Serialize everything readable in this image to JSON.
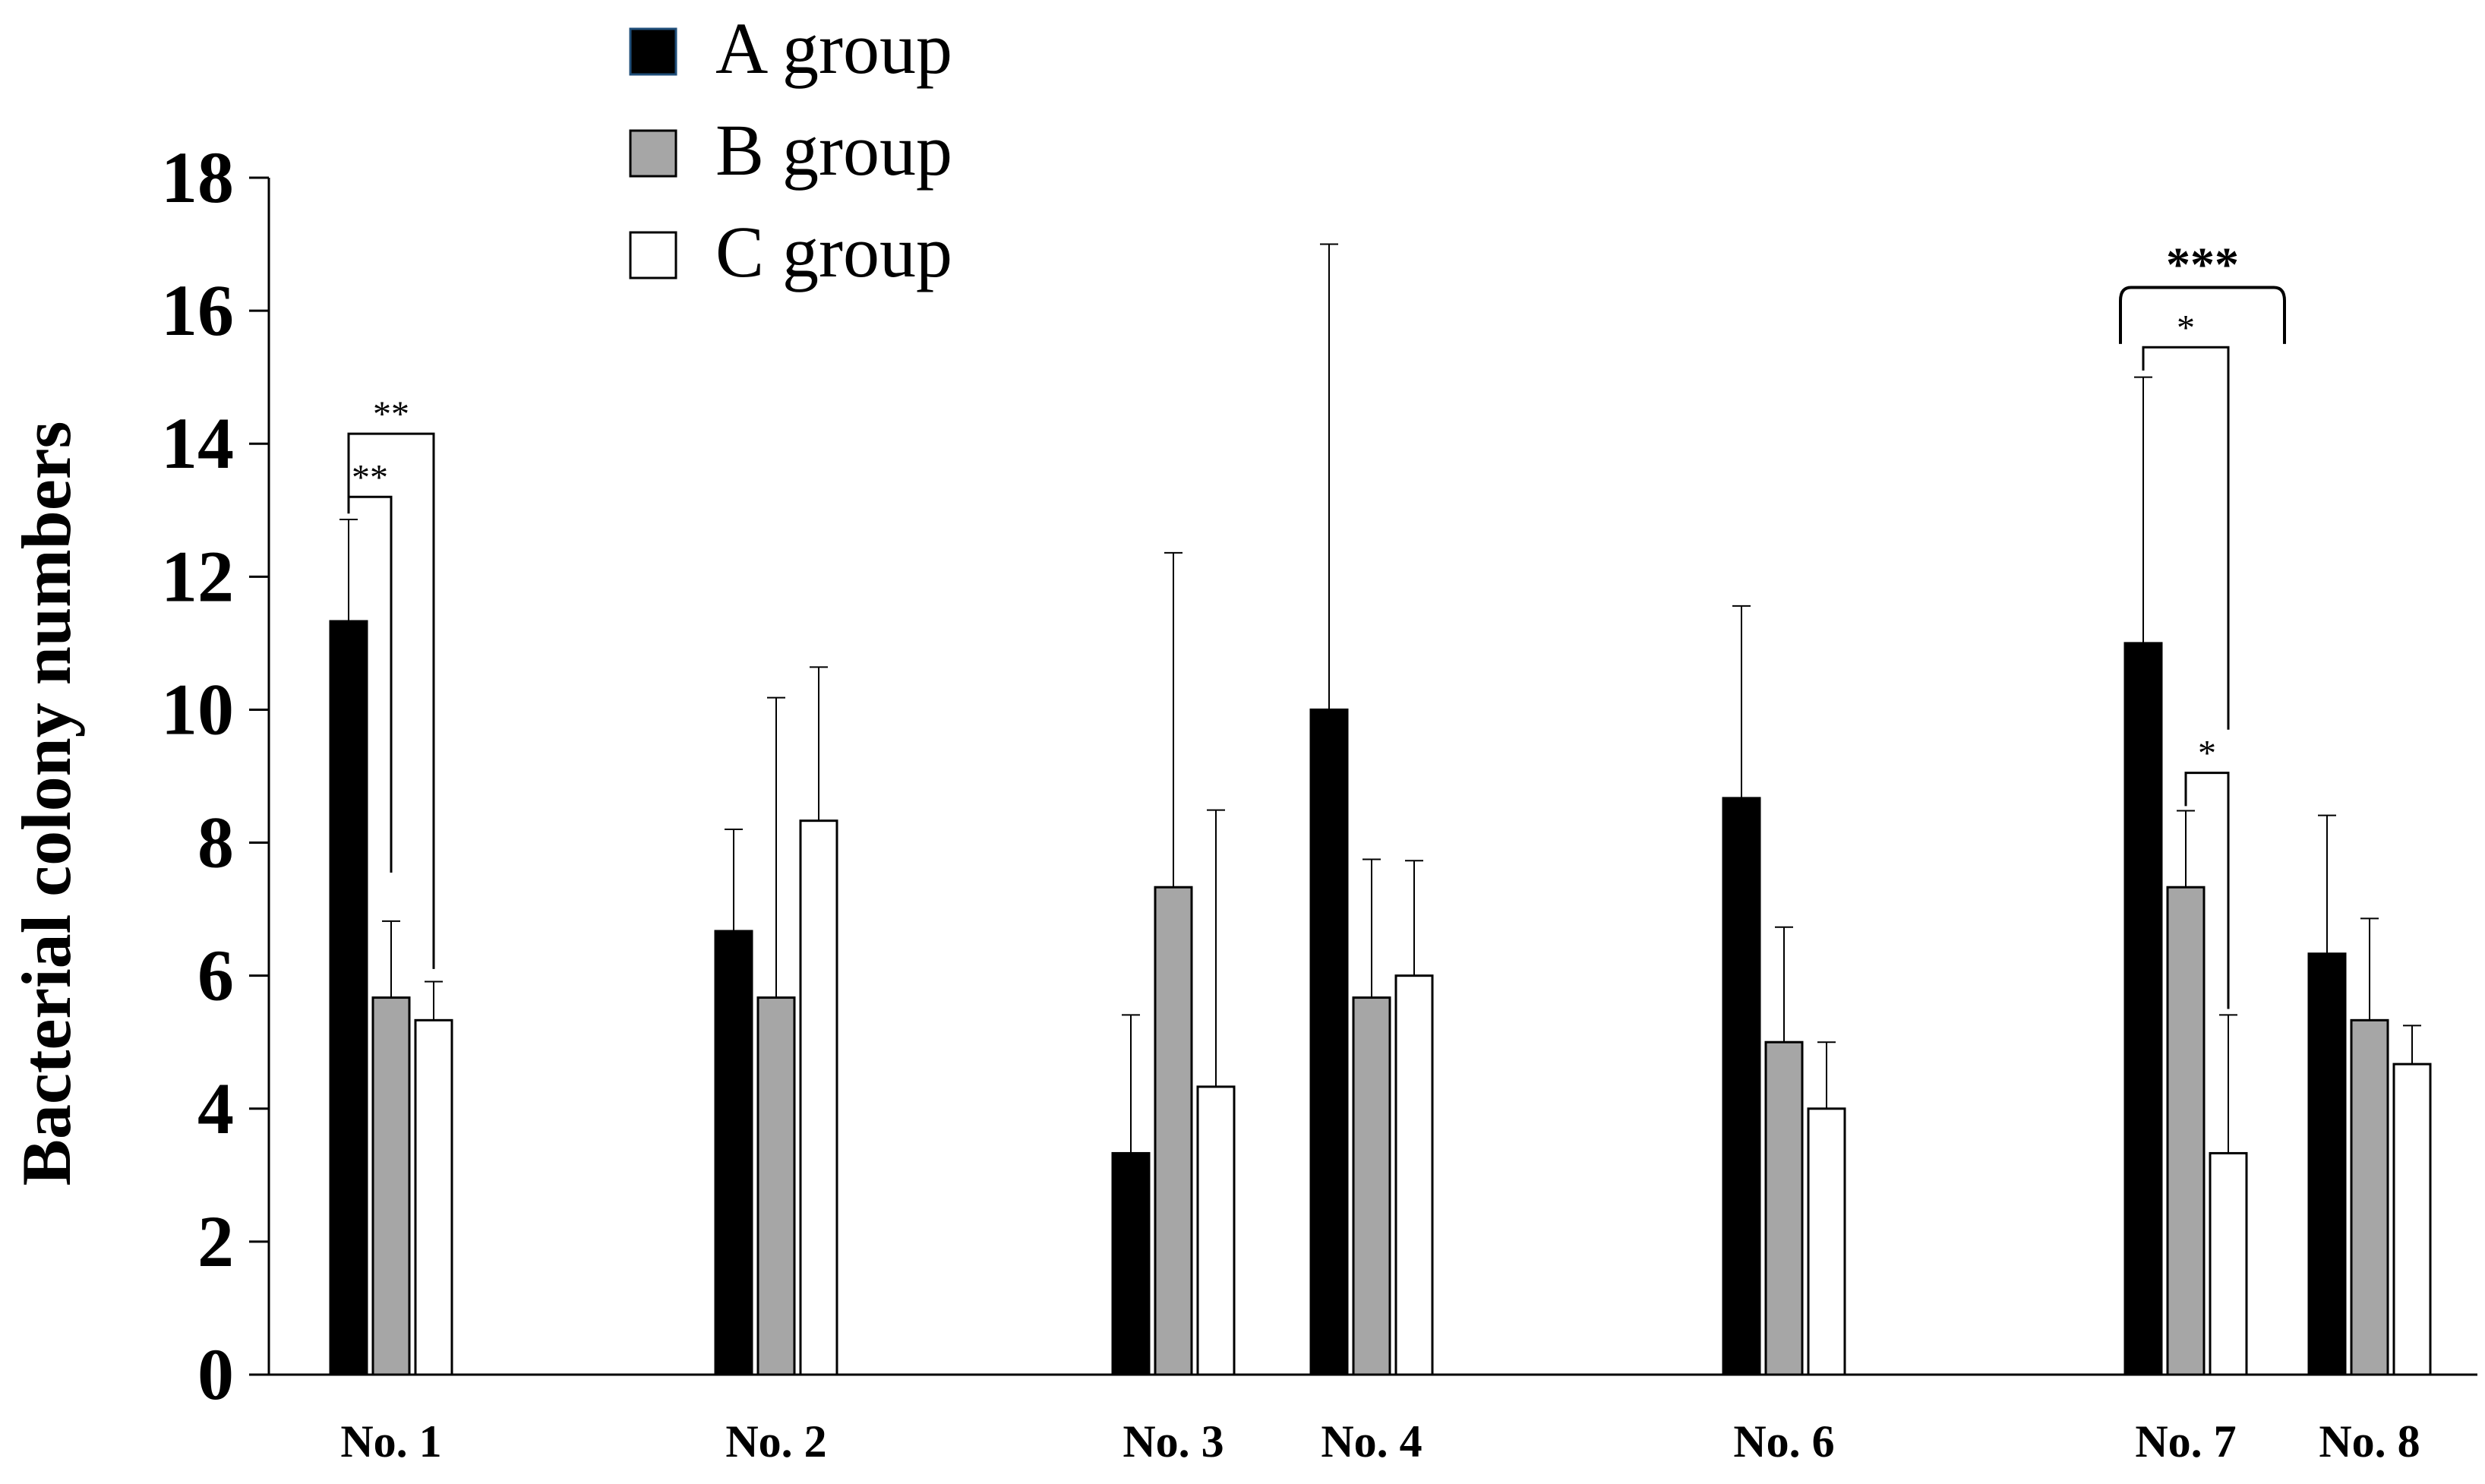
{
  "chart_data": {
    "type": "bar",
    "ylabel": "Bacterial colony numbers",
    "xlabel": "",
    "ylim": [
      0,
      18
    ],
    "yticks": [
      0,
      2,
      4,
      6,
      8,
      10,
      12,
      14,
      16,
      18
    ],
    "categories": [
      "No. 1",
      "No. 2",
      "No. 3",
      "No. 4",
      "No. 6",
      "No. 7",
      "No. 8"
    ],
    "series": [
      {
        "name": "A group",
        "color": "#000000",
        "values": [
          11.33,
          6.67,
          3.33,
          10.0,
          8.67,
          11.0,
          6.33
        ],
        "errors": [
          1.53,
          1.53,
          2.08,
          7.0,
          2.89,
          4.0,
          2.08
        ]
      },
      {
        "name": "B group",
        "color": "#a6a6a6",
        "values": [
          5.67,
          5.67,
          7.33,
          5.67,
          5.0,
          7.33,
          5.33
        ],
        "errors": [
          1.15,
          4.51,
          5.03,
          2.08,
          1.73,
          1.15,
          1.53
        ]
      },
      {
        "name": "C group",
        "color": "#ffffff",
        "values": [
          5.33,
          8.33,
          4.33,
          6.0,
          4.0,
          3.33,
          4.67
        ],
        "errors": [
          0.58,
          2.31,
          4.16,
          1.73,
          1.0,
          2.08,
          0.58
        ]
      }
    ],
    "legend": {
      "position": "top-left"
    },
    "significance": [
      {
        "category": "No. 1",
        "from": "A group",
        "to": "B group",
        "label": "**"
      },
      {
        "category": "No. 1",
        "from": "A group",
        "to": "C group",
        "label": "**"
      },
      {
        "category": "No. 7",
        "from": "B group",
        "to": "C group",
        "label": "*"
      },
      {
        "category": "No. 7",
        "from": "A group",
        "to": "C group",
        "label": "*"
      },
      {
        "category": "No. 7",
        "from": "A group",
        "to": "C group",
        "label": "***",
        "style": "bracket"
      }
    ]
  }
}
